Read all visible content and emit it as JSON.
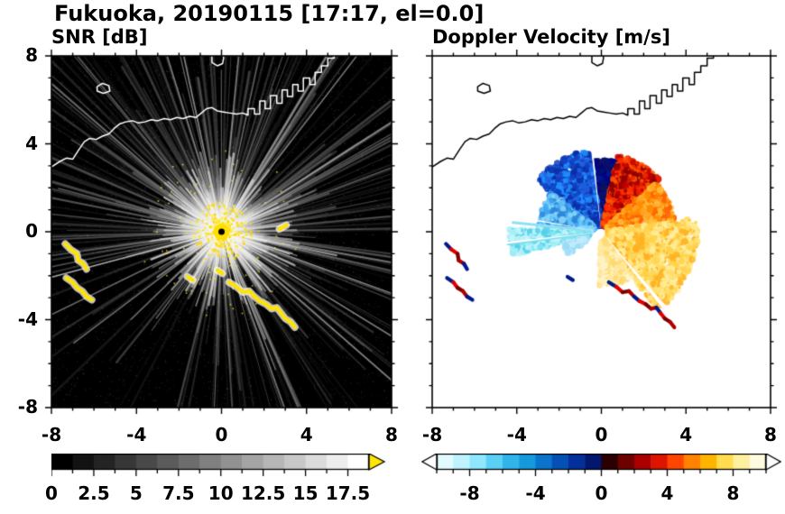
{
  "title": "Fukuoka, 20190115 [17:17, el=0.0]",
  "panels": {
    "snr": {
      "title": "SNR [dB]",
      "background": "#000000",
      "coast_color": "#ffffff"
    },
    "doppler": {
      "title": "Doppler Velocity [m/s]",
      "background": "#ffffff",
      "coast_color": "#000000"
    }
  },
  "axes": {
    "x_range": [
      -8,
      8
    ],
    "y_range": [
      -8,
      8
    ],
    "major_ticks": [
      -8,
      -4,
      0,
      4,
      8
    ],
    "major_tick_labels": [
      "-8",
      "-4",
      "0",
      "4",
      "8"
    ],
    "minor_step": 1
  },
  "colorbars": {
    "snr": {
      "min": 0,
      "max": 18.75,
      "step": 1.25,
      "tick_values": [
        0,
        2.5,
        5,
        7.5,
        10,
        12.5,
        15,
        17.5
      ],
      "tick_labels": [
        "0",
        "2.5",
        "5",
        "7.5",
        "10",
        "12.5",
        "15",
        "17.5"
      ],
      "overflow_color": "#ffe800"
    },
    "doppler": {
      "min": -10,
      "max": 10,
      "step": 1,
      "tick_values": [
        -8,
        -4,
        0,
        4,
        8
      ],
      "tick_labels": [
        "-8",
        "-4",
        "0",
        "4",
        "8"
      ],
      "under_color": "#ffffff",
      "over_color": "#ffffff",
      "colors": [
        "#e2fbff",
        "#bff2ff",
        "#8fe6ff",
        "#5bd0f5",
        "#30b4ea",
        "#149adc",
        "#0a74cc",
        "#0550b4",
        "#03309a",
        "#02176e",
        "#2a0000",
        "#6e0000",
        "#aa0000",
        "#dd1400",
        "#ff4600",
        "#ff8200",
        "#ffb400",
        "#ffdc50",
        "#fff0a0",
        "#fffbe0"
      ]
    }
  },
  "coastline": {
    "paths": [
      [
        [
          -8,
          2.95
        ],
        [
          -7.6,
          3.2
        ],
        [
          -7.3,
          3.35
        ],
        [
          -7.0,
          3.3
        ],
        [
          -6.7,
          3.75
        ],
        [
          -6.45,
          4.1
        ],
        [
          -6.2,
          4.25
        ],
        [
          -5.9,
          4.2
        ],
        [
          -5.6,
          4.35
        ],
        [
          -5.3,
          4.45
        ],
        [
          -5.05,
          4.7
        ],
        [
          -4.8,
          4.9
        ],
        [
          -4.5,
          5.0
        ],
        [
          -4.2,
          5.05
        ],
        [
          -3.9,
          4.95
        ],
        [
          -3.6,
          5.0
        ],
        [
          -3.3,
          5.1
        ],
        [
          -3.0,
          5.05
        ],
        [
          -2.7,
          5.15
        ],
        [
          -2.4,
          5.1
        ],
        [
          -2.1,
          5.2
        ],
        [
          -1.8,
          5.15
        ],
        [
          -1.5,
          5.25
        ],
        [
          -1.2,
          5.2
        ],
        [
          -0.95,
          5.4
        ],
        [
          -0.7,
          5.6
        ],
        [
          -0.45,
          5.65
        ],
        [
          -0.2,
          5.5
        ],
        [
          0.1,
          5.45
        ],
        [
          0.4,
          5.4
        ],
        [
          0.7,
          5.35
        ],
        [
          1.0,
          5.4
        ],
        [
          1.25,
          5.3
        ],
        [
          1.25,
          5.6
        ],
        [
          1.55,
          5.6
        ],
        [
          1.55,
          5.35
        ],
        [
          1.8,
          5.35
        ],
        [
          1.8,
          5.95
        ],
        [
          2.05,
          5.95
        ],
        [
          2.05,
          5.6
        ],
        [
          2.3,
          5.6
        ],
        [
          2.3,
          6.2
        ],
        [
          2.6,
          6.2
        ],
        [
          2.6,
          5.85
        ],
        [
          2.85,
          5.85
        ],
        [
          2.85,
          6.45
        ],
        [
          3.1,
          6.45
        ],
        [
          3.1,
          6.15
        ],
        [
          3.35,
          6.15
        ],
        [
          3.35,
          6.7
        ],
        [
          3.6,
          6.7
        ],
        [
          3.6,
          6.4
        ],
        [
          3.85,
          6.4
        ],
        [
          3.85,
          7.0
        ],
        [
          4.15,
          7.0
        ],
        [
          4.15,
          6.7
        ],
        [
          4.4,
          6.7
        ],
        [
          4.4,
          7.25
        ],
        [
          4.7,
          7.25
        ],
        [
          4.7,
          7.55
        ],
        [
          5.0,
          7.55
        ],
        [
          5.0,
          7.9
        ],
        [
          5.3,
          7.9
        ],
        [
          5.3,
          8.2
        ]
      ],
      [
        [
          -5.85,
          6.4
        ],
        [
          -5.55,
          6.3
        ],
        [
          -5.25,
          6.4
        ],
        [
          -5.3,
          6.65
        ],
        [
          -5.6,
          6.75
        ],
        [
          -5.85,
          6.6
        ],
        [
          -5.85,
          6.4
        ]
      ],
      [
        [
          -0.45,
          8.2
        ],
        [
          -0.45,
          7.7
        ],
        [
          -0.2,
          7.55
        ],
        [
          0.05,
          7.65
        ],
        [
          0.1,
          7.9
        ],
        [
          0.05,
          8.2
        ]
      ]
    ]
  },
  "clutter_arcs": [
    [
      [
        -7.35,
        -0.55
      ],
      [
        -7.1,
        -0.8
      ],
      [
        -6.8,
        -1.0
      ],
      [
        -6.75,
        -1.3
      ],
      [
        -6.5,
        -1.45
      ],
      [
        -6.35,
        -1.7
      ]
    ],
    [
      [
        -7.3,
        -2.1
      ],
      [
        -7.0,
        -2.3
      ],
      [
        -6.8,
        -2.55
      ],
      [
        -6.55,
        -2.7
      ],
      [
        -6.35,
        -2.95
      ],
      [
        -6.1,
        -3.1
      ]
    ],
    [
      [
        0.35,
        -2.3
      ],
      [
        0.7,
        -2.5
      ],
      [
        1.0,
        -2.75
      ],
      [
        1.3,
        -2.7
      ],
      [
        1.55,
        -2.95
      ],
      [
        1.8,
        -3.15
      ],
      [
        2.1,
        -3.3
      ],
      [
        2.35,
        -3.5
      ],
      [
        2.6,
        -3.45
      ],
      [
        2.8,
        -3.7
      ],
      [
        3.0,
        -3.95
      ],
      [
        3.25,
        -4.1
      ],
      [
        3.45,
        -4.35
      ]
    ],
    [
      [
        -1.6,
        -2.05
      ],
      [
        -1.35,
        -2.2
      ]
    ]
  ],
  "chart_data": [
    {
      "type": "heatmap",
      "subtype": "radar_ppi",
      "title": "SNR [dB]",
      "site": "Fukuoka",
      "date": "20190115",
      "time": "17:17",
      "elevation_deg": 0.0,
      "x_range_km": [
        -8,
        8
      ],
      "y_range_km": [
        -8,
        8
      ],
      "radar_location": [
        0,
        0
      ],
      "value_range_dB": [
        0,
        17.5
      ],
      "summary": "Radial fan of gray/white SNR beams from the radar at (0,0) on a black background; saturated (>17.5 dB, yellow) echoes at the radar site, plus yellow ground-clutter arcs near (-7,-1)-(-6,-3) and (0.3,-2.3)-(3.5,-4.4); coastline drawn in white across the upper part.",
      "render": {
        "seed": 7,
        "noise_points": 3200,
        "rays": {
          "count": 520,
          "dead_sector": [
            197,
            255
          ],
          "dead_skip": 0.78
        },
        "bright_rays": 60,
        "core_rays": 430,
        "glow_radius_px": 50,
        "explicit_rays": [
          {
            "a": 206,
            "len": 235
          },
          {
            "a": 217,
            "len": 205
          },
          {
            "a": 233,
            "len": 120
          }
        ],
        "dark_wedges": [
          [
            -63,
            -59.5
          ],
          [
            -78,
            -74.5
          ]
        ],
        "core_yellow_points": 650,
        "outer_yellow_points": 100,
        "yellow_palette": [
          "#ffe400",
          "#ffd400",
          "#fff15e"
        ],
        "clutter_color": "#ffe400",
        "extra_marks": [
          [
            [
              2.72,
              0.12
            ],
            [
              3.05,
              0.3
            ]
          ],
          [
            [
              -0.2,
              -1.75
            ],
            [
              0.05,
              -1.9
            ]
          ]
        ]
      }
    },
    {
      "type": "heatmap",
      "subtype": "radar_ppi",
      "title": "Doppler Velocity [m/s]",
      "site": "Fukuoka",
      "date": "20190115",
      "time": "17:17",
      "elevation_deg": 0.0,
      "x_range_km": [
        -8,
        8
      ],
      "y_range_km": [
        -8,
        8
      ],
      "radar_location": [
        0,
        0
      ],
      "value_range_ms": [
        -10,
        10
      ],
      "summary": "Doppler velocity on white background: negative velocities (dark navy to cyan) in the N-NW-W sectors, positive velocities (dark red, red, orange, yellow) in the NE-E-SE sectors extending to ~4.6 km; ground-clutter arcs SW shown as mixed red/navy; coastline in black.",
      "render": {
        "seed": 21,
        "sectors": [
          {
            "a": [
              78,
              98
            ],
            "r": [
              0.3,
              3.4
            ],
            "colors": [
              "#001070",
              "#001a99",
              "#000080",
              "#101060"
            ],
            "n": 900
          },
          {
            "a": [
              98,
              142
            ],
            "r": [
              0.3,
              3.9
            ],
            "colors": [
              "#1040c0",
              "#2060e0",
              "#1e90ff",
              "#0a2ea6"
            ],
            "n": 1150
          },
          {
            "a": [
              142,
              178
            ],
            "r": [
              0.35,
              3.0
            ],
            "colors": [
              "#3fa9f5",
              "#63c3f7",
              "#8ed8fa",
              "#2e86d8"
            ],
            "n": 750
          },
          {
            "a": [
              178,
              195
            ],
            "r": [
              0.5,
              4.35
            ],
            "colors": [
              "#7fe8f0",
              "#a8f0f7",
              "#55d0ea",
              "#c8f6fb"
            ],
            "n": 520
          },
          {
            "a": [
              196,
              214
            ],
            "r": [
              0.7,
              1.9
            ],
            "colors": [
              "#9adcf7",
              "#c2ecfb"
            ],
            "n": 110
          },
          {
            "a": [
              42,
              78
            ],
            "r": [
              0.3,
              3.7
            ],
            "colors": [
              "#c00000",
              "#e82000",
              "#ff3000",
              "#8b0000",
              "#ff5a00"
            ],
            "n": 1000
          },
          {
            "a": [
              8,
              42
            ],
            "r": [
              0.3,
              3.5
            ],
            "colors": [
              "#ff6000",
              "#ff8c00",
              "#ffa520",
              "#ffc040"
            ],
            "n": 880
          },
          {
            "a": [
              -55,
              8
            ],
            "r": [
              0.3,
              4.55
            ],
            "colors": [
              "#ffd24a",
              "#ffe070",
              "#ffef9e",
              "#ffb020"
            ],
            "n": 1500
          },
          {
            "a": [
              -92,
              -55
            ],
            "r": [
              0.4,
              2.6
            ],
            "colors": [
              "#ffe9a0",
              "#fff3c8",
              "#ffd86e"
            ],
            "n": 430
          }
        ],
        "needles": [
          {
            "a": 174,
            "r": [
              0.5,
              4.2
            ],
            "color": "#8fe0f4"
          },
          {
            "a": 187.5,
            "r": [
              0.5,
              4.45
            ],
            "color": "#7fdcf2"
          }
        ],
        "white_gaps": [
          [
            95.8,
            97.2
          ],
          [
            186,
            187.4
          ],
          [
            169.5,
            170.7
          ],
          [
            -51.5,
            -49
          ]
        ],
        "clutter_colors": [
          "#b00000",
          "#001a8c",
          "#e00000",
          "#7a0000"
        ]
      }
    }
  ]
}
